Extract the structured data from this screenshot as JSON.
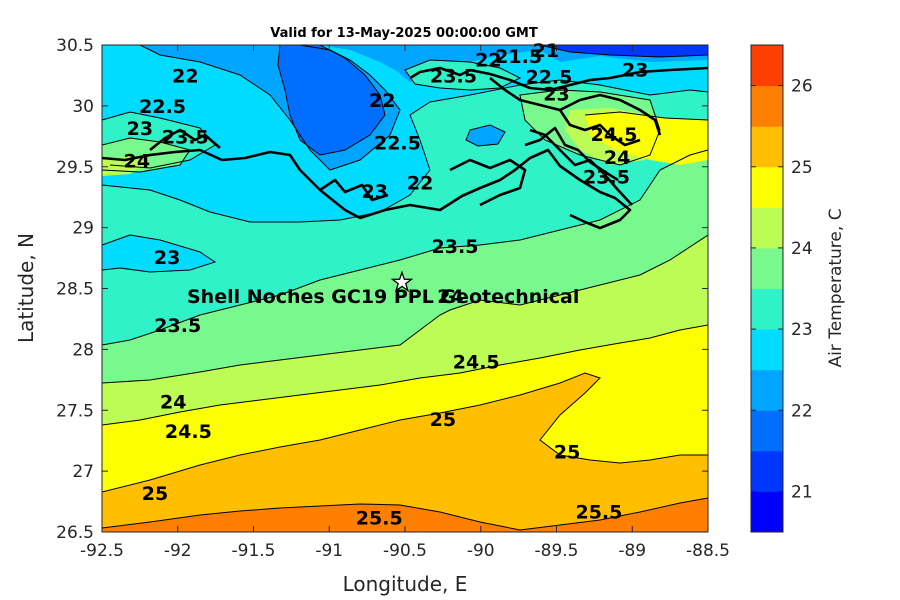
{
  "title": "Valid for 13-May-2025 00:00:00 GMT",
  "site_label": "Shell Noches   GC19 PPL  Geotechnical",
  "site_marker_icon": "star-icon",
  "chart_data": {
    "type": "heatmap",
    "x_ticks": [
      "-92.5",
      "-92",
      "-91.5",
      "-91",
      "-90.5",
      "-90",
      "-89.5",
      "-89",
      "-88.5"
    ],
    "y_ticks": [
      "30.5",
      "30",
      "29.5",
      "29",
      "28.5",
      "28",
      "27.5",
      "27",
      "26.5"
    ],
    "xlabel": "Longitude, E",
    "ylabel": "Latitude, N",
    "xlim": [
      -92.5,
      -88.5
    ],
    "ylim": [
      26.5,
      30.5
    ],
    "site": {
      "lon": -90.52,
      "lat": 28.55
    },
    "colorbar": {
      "label": "Air Temperature, C",
      "range": [
        20.5,
        26.5
      ],
      "ticks": [
        "21",
        "22",
        "23",
        "24",
        "25",
        "26"
      ],
      "colors": [
        "#0000ff",
        "#0037ff",
        "#006eff",
        "#00a5ff",
        "#00dcff",
        "#2ff2c9",
        "#77f98e",
        "#bdfc55",
        "#fcff00",
        "#ffbe00",
        "#ff7f00",
        "#ff3f00"
      ]
    },
    "contour_labels": [
      {
        "text": "22",
        "lon": -91.95,
        "lat": 30.25
      },
      {
        "text": "22",
        "lon": -90.65,
        "lat": 30.05
      },
      {
        "text": "22.5",
        "lon": -92.1,
        "lat": 30.0
      },
      {
        "text": "23",
        "lon": -92.25,
        "lat": 29.82
      },
      {
        "text": "23.5",
        "lon": -91.95,
        "lat": 29.75
      },
      {
        "text": "24",
        "lon": -92.27,
        "lat": 29.55
      },
      {
        "text": "23.5",
        "lon": -90.18,
        "lat": 30.25
      },
      {
        "text": "22",
        "lon": -89.95,
        "lat": 30.38
      },
      {
        "text": "21.5",
        "lon": -89.75,
        "lat": 30.41
      },
      {
        "text": "21",
        "lon": -89.57,
        "lat": 30.46
      },
      {
        "text": "22.5",
        "lon": -89.55,
        "lat": 30.24
      },
      {
        "text": "23",
        "lon": -89.5,
        "lat": 30.1
      },
      {
        "text": "23",
        "lon": -88.98,
        "lat": 30.3
      },
      {
        "text": "22.5",
        "lon": -90.55,
        "lat": 29.7
      },
      {
        "text": "23",
        "lon": -90.7,
        "lat": 29.3
      },
      {
        "text": "22",
        "lon": -90.4,
        "lat": 29.37
      },
      {
        "text": "24.5",
        "lon": -89.12,
        "lat": 29.77
      },
      {
        "text": "24",
        "lon": -89.1,
        "lat": 29.58
      },
      {
        "text": "23.5",
        "lon": -89.17,
        "lat": 29.42
      },
      {
        "text": "23",
        "lon": -92.07,
        "lat": 28.76
      },
      {
        "text": "23.5",
        "lon": -90.17,
        "lat": 28.85
      },
      {
        "text": "24",
        "lon": -90.2,
        "lat": 28.44
      },
      {
        "text": "23.5",
        "lon": -92.0,
        "lat": 28.2
      },
      {
        "text": "24.5",
        "lon": -90.03,
        "lat": 27.9
      },
      {
        "text": "24",
        "lon": -92.03,
        "lat": 27.57
      },
      {
        "text": "24.5",
        "lon": -91.93,
        "lat": 27.33
      },
      {
        "text": "25",
        "lon": -90.25,
        "lat": 27.43
      },
      {
        "text": "25",
        "lon": -89.43,
        "lat": 27.16
      },
      {
        "text": "25",
        "lon": -92.15,
        "lat": 26.82
      },
      {
        "text": "25.5",
        "lon": -90.67,
        "lat": 26.62
      },
      {
        "text": "25.5",
        "lon": -89.22,
        "lat": 26.67
      }
    ]
  }
}
